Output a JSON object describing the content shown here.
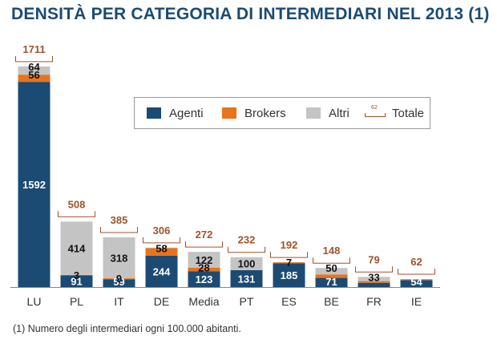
{
  "title": "DENSITÀ PER CATEGORIA DI INTERMEDIARI NEL 2013 (1)",
  "footnote": "(1) Numero degli intermediari ogni 100.000 abitanti.",
  "colors": {
    "agenti": "#1b4b73",
    "brokers": "#e8731c",
    "altri": "#c4c4c4",
    "totale": "#a0522d"
  },
  "legend": {
    "agenti": "Agenti",
    "brokers": "Brokers",
    "altri": "Altri",
    "totale": "Totale",
    "totale_sample": "62"
  },
  "chart_data": {
    "type": "bar",
    "stacked": true,
    "categories": [
      "LU",
      "PL",
      "IT",
      "DE",
      "Media",
      "PT",
      "ES",
      "BE",
      "FR",
      "IE"
    ],
    "series": [
      {
        "name": "Agenti",
        "values": [
          1592,
          91,
          59,
          244,
          123,
          131,
          185,
          71,
          33,
          54
        ]
      },
      {
        "name": "Brokers",
        "values": [
          56,
          3,
          9,
          58,
          28,
          1,
          7,
          27,
          13,
          7
        ]
      },
      {
        "name": "Altri",
        "values": [
          64,
          414,
          318,
          4,
          122,
          100,
          0,
          50,
          33,
          1
        ]
      }
    ],
    "labels": {
      "Agenti": [
        "1592",
        "91",
        "59",
        "244",
        "123",
        "131",
        "185",
        "71",
        "",
        "54"
      ],
      "Brokers": [
        "56",
        "3",
        "9",
        "58",
        "28",
        "",
        "7",
        "",
        "",
        ""
      ],
      "Altri": [
        "64",
        "414",
        "318",
        "",
        "122",
        "100",
        "",
        "50",
        "33",
        ""
      ]
    },
    "totals": [
      1711,
      508,
      385,
      306,
      272,
      232,
      192,
      148,
      79,
      62
    ],
    "ylim": [
      0,
      1711
    ],
    "legend_position": "top-right",
    "grid": false
  }
}
